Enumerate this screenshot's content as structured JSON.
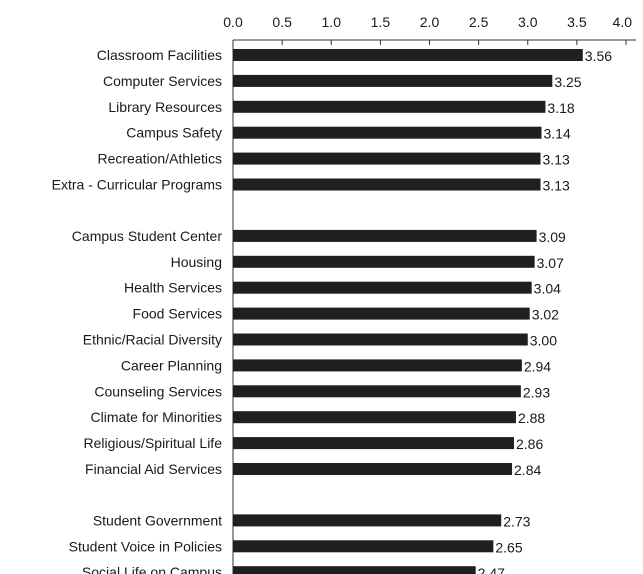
{
  "chart_data": {
    "type": "bar",
    "orientation": "horizontal",
    "title": "",
    "xlabel": "",
    "ylabel": "",
    "xlim": [
      0,
      4.0
    ],
    "ticks": [
      "0.0",
      "0.5",
      "1.0",
      "1.5",
      "2.0",
      "2.5",
      "3.0",
      "3.5",
      "4.0"
    ],
    "tick_values": [
      0,
      0.5,
      1.0,
      1.5,
      2.0,
      2.5,
      3.0,
      3.5,
      4.0
    ],
    "axis_position": "top",
    "grid": false,
    "bar_color": "#1f1f1f",
    "groups": [
      {
        "categories": [
          "Classroom Facilities",
          "Computer Services",
          "Library Resources",
          "Campus Safety",
          "Recreation/Athletics",
          "Extra - Curricular Programs"
        ],
        "values": [
          3.56,
          3.25,
          3.18,
          3.14,
          3.13,
          3.13
        ],
        "value_labels": [
          "3.56",
          "3.25",
          "3.18",
          "3.14",
          "3.13",
          "3.13"
        ]
      },
      {
        "categories": [
          "Campus Student Center",
          "Housing",
          "Health Services",
          "Food Services",
          "Ethnic/Racial Diversity",
          "Career Planning",
          "Counseling Services",
          "Climate for Minorities",
          "Religious/Spiritual Life",
          "Financial Aid Services"
        ],
        "values": [
          3.09,
          3.07,
          3.04,
          3.02,
          3.0,
          2.94,
          2.93,
          2.88,
          2.86,
          2.84
        ],
        "value_labels": [
          "3.09",
          "3.07",
          "3.04",
          "3.02",
          "3.00",
          "2.94",
          "2.93",
          "2.88",
          "2.86",
          "2.84"
        ]
      },
      {
        "categories": [
          "Student Government",
          "Student Voice in Policies",
          "Social Life on Campus"
        ],
        "values": [
          2.73,
          2.65,
          2.47
        ],
        "value_labels": [
          "2.73",
          "2.65",
          "2.47"
        ]
      }
    ]
  }
}
